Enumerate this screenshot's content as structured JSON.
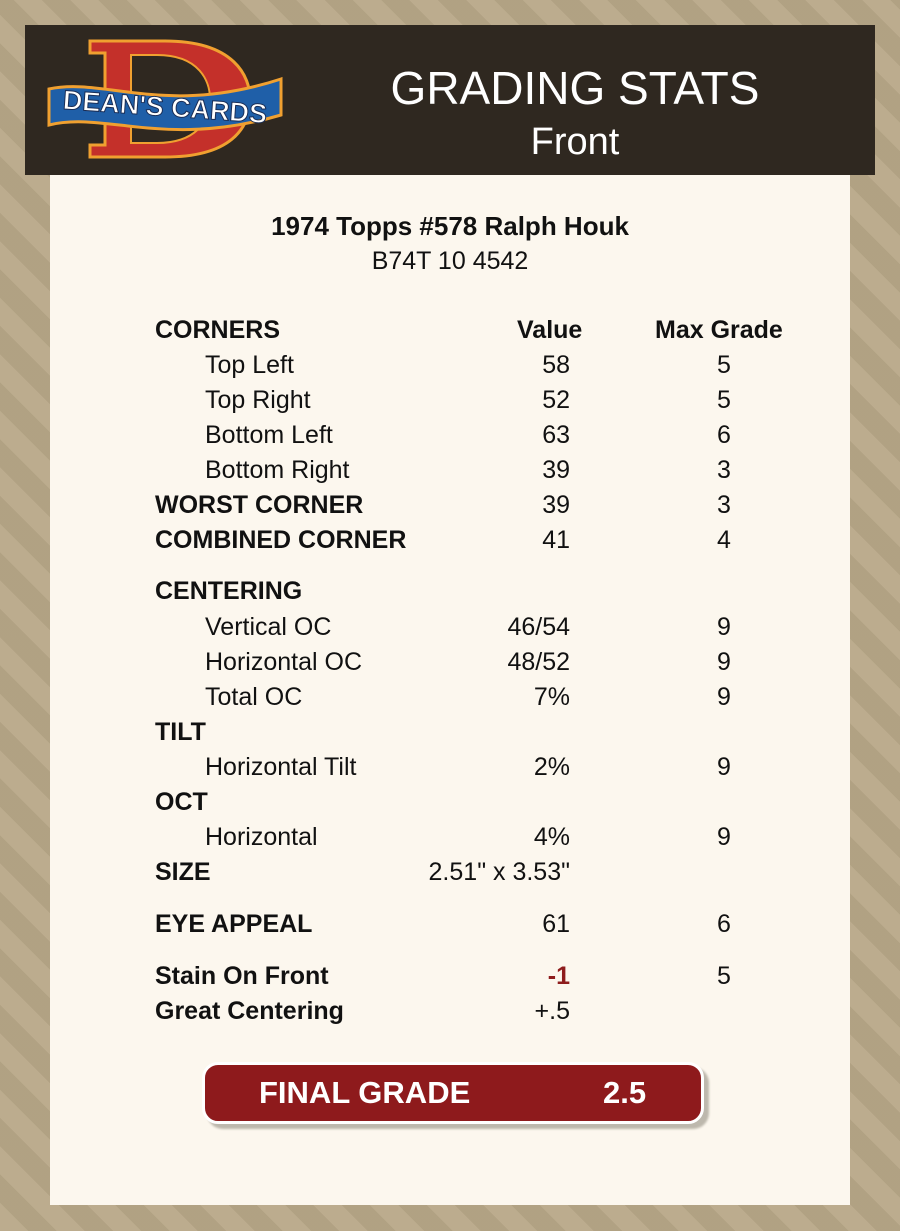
{
  "header": {
    "logo_text": "DEAN'S CARDS",
    "title": "GRADING STATS",
    "subtitle": "Front"
  },
  "card": {
    "title": "1974 Topps #578 Ralph Houk",
    "id": "B74T 10 4542"
  },
  "columns": {
    "value": "Value",
    "max": "Max Grade"
  },
  "rows": [
    {
      "label": "CORNERS",
      "style": "bold",
      "value": "",
      "max": ""
    },
    {
      "label": "Top Left",
      "style": "sub",
      "value": "58",
      "max": "5"
    },
    {
      "label": "Top Right",
      "style": "sub",
      "value": "52",
      "max": "5"
    },
    {
      "label": "Bottom Left",
      "style": "sub",
      "value": "63",
      "max": "6"
    },
    {
      "label": "Bottom Right",
      "style": "sub",
      "value": "39",
      "max": "3"
    },
    {
      "label": "WORST CORNER",
      "style": "bold",
      "value": "39",
      "max": "3"
    },
    {
      "label": "COMBINED CORNER",
      "style": "bold",
      "value": "41",
      "max": "4"
    },
    {
      "label": "CENTERING",
      "style": "bold",
      "value": "",
      "max": ""
    },
    {
      "label": "Vertical OC",
      "style": "sub",
      "value": "46/54",
      "max": "9"
    },
    {
      "label": "Horizontal OC",
      "style": "sub",
      "value": "48/52",
      "max": "9"
    },
    {
      "label": "Total OC",
      "style": "sub",
      "value": "7%",
      "max": "9"
    },
    {
      "label": "TILT",
      "style": "bold",
      "value": "",
      "max": ""
    },
    {
      "label": "Horizontal Tilt",
      "style": "sub",
      "value": "2%",
      "max": "9"
    },
    {
      "label": "OCT",
      "style": "bold",
      "value": "",
      "max": ""
    },
    {
      "label": "Horizontal",
      "style": "sub",
      "value": "4%",
      "max": "9"
    },
    {
      "label": "SIZE",
      "style": "bold",
      "value": "2.51\" x 3.53\"",
      "max": ""
    },
    {
      "label": "EYE APPEAL",
      "style": "bold",
      "value": "61",
      "max": "6"
    },
    {
      "label": "Stain On Front",
      "style": "bold",
      "value": "-1",
      "max": "5",
      "negative": true
    },
    {
      "label": "Great Centering",
      "style": "bold",
      "value": "+.5",
      "max": ""
    }
  ],
  "final": {
    "label": "FINAL GRADE",
    "value": "2.5"
  },
  "colors": {
    "header_bg": "#2f2820",
    "card_bg": "#fcf7ee",
    "accent": "#8e1a1c"
  }
}
